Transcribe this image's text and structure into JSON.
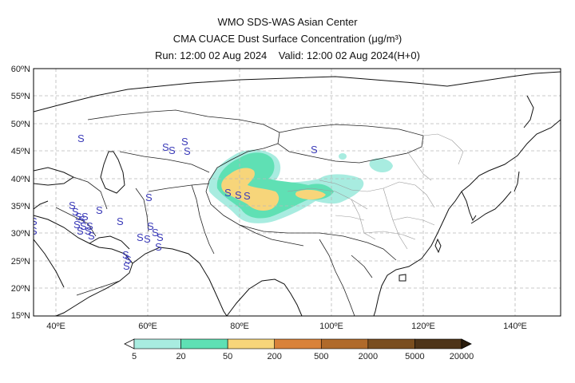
{
  "header": {
    "center_name": "WMO SDS-WAS Asian Center",
    "product": "CMA CUACE Dust Surface Concentration",
    "unit": "(μg/m³)",
    "run": "Run: 12:00 02 Aug 2024",
    "valid": "Valid: 12:00 02 Aug 2024(H+0)"
  },
  "map": {
    "lon_range": [
      35,
      150
    ],
    "lat_range": [
      15,
      60
    ],
    "lon_ticks": [
      "40ºE",
      "60ºE",
      "80ºE",
      "100ºE",
      "120ºE",
      "140ºE"
    ],
    "lat_ticks": [
      "60ºN",
      "55ºN",
      "50ºN",
      "45ºN",
      "40ºN",
      "35ºN",
      "30ºN",
      "25ºN",
      "20ºN",
      "15ºN"
    ],
    "grid": true,
    "dust_symbol": "S",
    "dust_symbol_count": 40
  },
  "colorbar": {
    "labels": [
      "5",
      "20",
      "50",
      "200",
      "500",
      "2000",
      "5000",
      "20000"
    ],
    "colors": [
      "#a8ece0",
      "#5fe0b4",
      "#f7d57a",
      "#d9823a",
      "#b06a2a",
      "#7a4e1f",
      "#4e3418"
    ],
    "under_color": "#ffffff",
    "over_color": "#2a1c0c"
  }
}
